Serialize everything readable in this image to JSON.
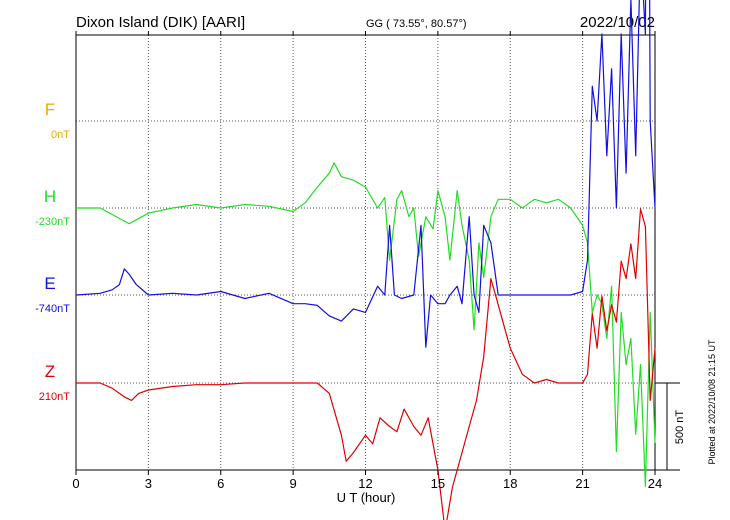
{
  "chart_data": {
    "type": "line",
    "title": "Dixon Island (DIK)  [AARI]",
    "subtitle": "GG ( 73.55°,  80.57°)",
    "date": "2022/10/02",
    "xlabel": "U T (hour)",
    "xlim": [
      0,
      24
    ],
    "xticks": [
      "0",
      "3",
      "6",
      "9",
      "12",
      "15",
      "18",
      "21",
      "24"
    ],
    "scale_label": "500 nT",
    "plotted_label": "Plotted at 2022/10/08 21:15 UT",
    "grid": true,
    "series": [
      {
        "name": "F",
        "offset_label": "0nT",
        "color": "#f0a800",
        "x": [],
        "y": []
      },
      {
        "name": "H",
        "offset_label": "-230nT",
        "color": "#22dd22",
        "x": [
          0,
          1,
          1.8,
          2.2,
          3,
          4,
          5,
          6,
          7,
          8,
          9,
          9.5,
          10,
          10.5,
          10.7,
          11,
          11.5,
          12,
          12.5,
          12.8,
          13,
          13.3,
          13.5,
          13.8,
          14,
          14.2,
          14.5,
          14.8,
          15,
          15.3,
          15.5,
          15.8,
          16,
          16.3,
          16.5,
          16.7,
          16.9,
          17.2,
          17.5,
          18,
          18.5,
          19,
          19.5,
          20,
          20.5,
          21,
          21.2,
          21.4,
          21.6,
          21.8,
          22,
          22.2,
          22.4,
          22.6,
          22.8,
          23,
          23.2,
          23.4,
          23.6,
          23.8,
          24
        ],
        "y": [
          0,
          0,
          -60,
          -90,
          -30,
          0,
          20,
          0,
          20,
          10,
          -20,
          30,
          120,
          200,
          260,
          180,
          160,
          120,
          0,
          60,
          -300,
          50,
          100,
          -50,
          0,
          -280,
          -50,
          -120,
          100,
          -50,
          -300,
          100,
          -100,
          -300,
          -700,
          -200,
          -400,
          -50,
          50,
          50,
          0,
          50,
          30,
          50,
          0,
          -100,
          -200,
          -600,
          -500,
          -550,
          -750,
          -450,
          -1400,
          -600,
          -900,
          -750,
          -1300,
          -900,
          -1600,
          -600,
          -1350
        ]
      },
      {
        "name": "E",
        "offset_label": "-740nT",
        "color": "#1010e0",
        "x": [
          0,
          1,
          1.5,
          1.8,
          2,
          2.2,
          2.5,
          3,
          4,
          5,
          6,
          7,
          8,
          9,
          9.5,
          10,
          10.5,
          11,
          11.5,
          12,
          12.5,
          12.8,
          13,
          13.2,
          13.5,
          14,
          14.3,
          14.5,
          14.7,
          15,
          15.3,
          15.5,
          15.8,
          16,
          16.3,
          16.5,
          16.7,
          16.9,
          17.2,
          17.5,
          18,
          19,
          20,
          20.5,
          21,
          21.2,
          21.4,
          21.6,
          21.8,
          22,
          22.2,
          22.4,
          22.6,
          22.8,
          23,
          23.2,
          23.4,
          23.6,
          23.7,
          23.8,
          24
        ],
        "y": [
          0,
          10,
          30,
          60,
          150,
          120,
          60,
          0,
          10,
          0,
          20,
          -20,
          10,
          -50,
          -50,
          -60,
          -120,
          -150,
          -80,
          -100,
          50,
          0,
          400,
          0,
          -20,
          0,
          400,
          -300,
          0,
          -50,
          -50,
          0,
          50,
          -50,
          450,
          0,
          -100,
          400,
          300,
          0,
          0,
          0,
          0,
          0,
          20,
          200,
          1200,
          1000,
          1500,
          800,
          1300,
          500,
          1500,
          700,
          1700,
          800,
          2000,
          1500,
          4200,
          1000,
          500
        ]
      },
      {
        "name": "Z",
        "offset_label": "210nT",
        "color": "#e00000",
        "x": [
          0,
          1,
          1.5,
          2,
          2.3,
          2.6,
          3,
          4,
          5,
          6,
          7,
          8,
          9,
          9.5,
          10,
          10.5,
          11,
          11.2,
          11.5,
          12,
          12.3,
          12.6,
          13,
          13.3,
          13.6,
          14,
          14.3,
          14.6,
          15,
          15.3,
          15.6,
          16,
          16.3,
          16.6,
          16.9,
          17.2,
          17.5,
          17.8,
          18,
          18.5,
          19,
          19.5,
          20,
          20.5,
          21,
          21.2,
          21.4,
          21.6,
          21.8,
          22,
          22.2,
          22.4,
          22.6,
          22.8,
          23,
          23.2,
          23.4,
          23.6,
          23.8,
          24
        ],
        "y": [
          0,
          0,
          -30,
          -80,
          -100,
          -60,
          -40,
          -20,
          -10,
          -10,
          0,
          0,
          0,
          0,
          0,
          -60,
          -300,
          -450,
          -400,
          -300,
          -350,
          -200,
          -250,
          -280,
          -150,
          -250,
          -300,
          -200,
          -500,
          -850,
          -600,
          -400,
          -250,
          -100,
          150,
          600,
          450,
          300,
          200,
          50,
          0,
          20,
          0,
          0,
          0,
          50,
          400,
          200,
          500,
          300,
          450,
          350,
          700,
          600,
          800,
          600,
          1000,
          900,
          -100,
          200
        ]
      }
    ]
  }
}
